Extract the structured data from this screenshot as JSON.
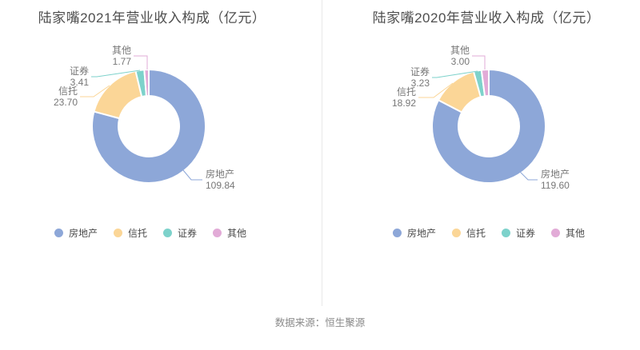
{
  "page": {
    "source_note": "数据来源：恒生聚源"
  },
  "colors": {
    "palette": [
      "#8DA7D8",
      "#FBD697",
      "#7DD2CB",
      "#E2ABD7"
    ],
    "title_text": "#4E4E4E",
    "label_text": "#777777",
    "legend_text": "#4A4A4A",
    "source_text": "#8A8A8A",
    "divider": "#E8E8E8",
    "background": "#FFFFFF"
  },
  "chart_data": [
    {
      "type": "pie",
      "subtype": "donut",
      "title": "陆家嘴2021年营业收入构成（亿元）",
      "categories": [
        "房地产",
        "信托",
        "证券",
        "其他"
      ],
      "values": [
        109.84,
        23.7,
        3.41,
        1.77
      ],
      "value_labels": [
        "109.84",
        "23.70",
        "3.41",
        "1.77"
      ],
      "colors": [
        "#8DA7D8",
        "#FBD697",
        "#7DD2CB",
        "#E2ABD7"
      ],
      "legend_entries": [
        "房地产",
        "信托",
        "证券",
        "其他"
      ],
      "legend_position": "bottom",
      "start_angle_deg": 90,
      "direction": "clockwise"
    },
    {
      "type": "pie",
      "subtype": "donut",
      "title": "陆家嘴2020年营业收入构成（亿元）",
      "categories": [
        "房地产",
        "信托",
        "证券",
        "其他"
      ],
      "values": [
        119.6,
        18.92,
        3.23,
        3.0
      ],
      "value_labels": [
        "119.60",
        "18.92",
        "3.23",
        "3.00"
      ],
      "colors": [
        "#8DA7D8",
        "#FBD697",
        "#7DD2CB",
        "#E2ABD7"
      ],
      "legend_entries": [
        "房地产",
        "信托",
        "证券",
        "其他"
      ],
      "legend_position": "bottom",
      "start_angle_deg": 90,
      "direction": "clockwise"
    }
  ]
}
